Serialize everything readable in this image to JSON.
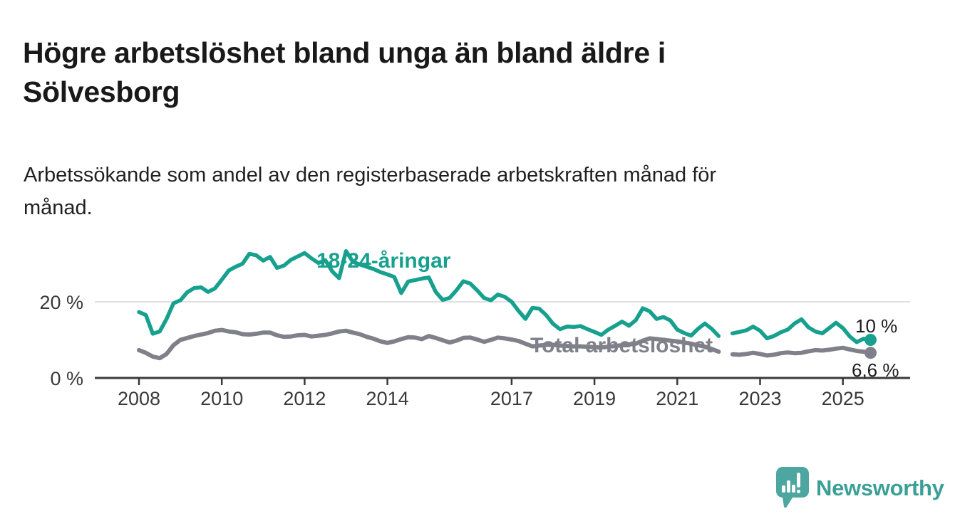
{
  "page": {
    "title_lines": [
      "Högre arbetslöshet bland unga än bland äldre i",
      "Sölvesborg"
    ],
    "subtitle_lines": [
      "Arbetssökande som andel av den registerbaserade arbetskraften månad för",
      "månad."
    ]
  },
  "branding": {
    "name": "Newsworthy",
    "logo_icon": "speech-bubble-bar-chart",
    "icon_color": "#4da69f",
    "text_color": "#3aa096"
  },
  "chart_data": {
    "type": "line",
    "title": "Högre arbetslöshet bland unga än bland äldre i Sölvesborg",
    "subtitle": "Arbetssökande som andel av den registerbaserade arbetskraften månad för månad.",
    "x_unit": "decimal_year",
    "x_start": 2008.0,
    "x_step": 0.16667,
    "x_axis": {
      "tick_years": [
        2008,
        2010,
        2012,
        2014,
        2017,
        2019,
        2021,
        2023,
        2025
      ],
      "tick_labels": [
        "2008",
        "2010",
        "2012",
        "2014",
        "2017",
        "2019",
        "2021",
        "2023",
        "2025"
      ]
    },
    "y_axis": {
      "ticks": [
        0,
        20
      ],
      "tick_labels": [
        "0 %",
        "20 %"
      ],
      "visible_max": 34,
      "grid": "only-at-20"
    },
    "legend_position": "inline-labels",
    "colors": {
      "young": "#17a08e",
      "total": "#80808a",
      "grid": "#e0e0e0",
      "axis": "#3a3a3a"
    },
    "series": [
      {
        "name": "18-24-åringar",
        "color": "#17a08e",
        "end_value_label": "10 %",
        "values": [
          17.3,
          16.5,
          11.6,
          12.2,
          15.5,
          19.6,
          20.4,
          22.5,
          23.6,
          23.8,
          22.6,
          23.5,
          25.8,
          28.2,
          29.2,
          30.0,
          32.6,
          32.2,
          30.8,
          31.8,
          28.9,
          29.5,
          31.0,
          31.9,
          32.8,
          31.4,
          30.2,
          30.9,
          28.0,
          26.2,
          33.3,
          30.5,
          29.8,
          29.2,
          28.6,
          27.8,
          27.2,
          26.5,
          22.3,
          25.3,
          25.7,
          26.1,
          26.4,
          22.6,
          20.5,
          21.0,
          23.0,
          25.4,
          24.8,
          23.0,
          21.0,
          20.4,
          21.9,
          21.3,
          20.0,
          17.6,
          15.5,
          18.4,
          18.2,
          16.5,
          14.2,
          12.8,
          13.5,
          13.4,
          13.6,
          12.8,
          12.1,
          11.3,
          12.7,
          13.7,
          14.8,
          13.7,
          15.2,
          18.3,
          17.5,
          15.5,
          16.0,
          15.1,
          12.7,
          11.8,
          11.1,
          12.9,
          14.3,
          12.9,
          11.0,
          null,
          11.7,
          12.1,
          12.5,
          13.5,
          12.4,
          10.4,
          11.0,
          12.0,
          12.7,
          14.3,
          15.4,
          13.3,
          12.2,
          11.7,
          13.1,
          14.5,
          13.1,
          10.9,
          9.4,
          10.3,
          10.0
        ]
      },
      {
        "name": "Total arbetslöshet",
        "color": "#80808a",
        "end_value_label": "6,6 %",
        "values": [
          7.3,
          6.6,
          5.6,
          5.2,
          6.3,
          8.6,
          10.0,
          10.5,
          11.0,
          11.4,
          11.8,
          12.4,
          12.6,
          12.2,
          12.0,
          11.5,
          11.4,
          11.6,
          11.9,
          11.9,
          11.2,
          10.8,
          10.9,
          11.2,
          11.3,
          10.9,
          11.1,
          11.3,
          11.7,
          12.2,
          12.4,
          11.9,
          11.5,
          10.8,
          10.3,
          9.6,
          9.2,
          9.6,
          10.2,
          10.7,
          10.6,
          10.2,
          11.0,
          10.5,
          9.9,
          9.3,
          9.8,
          10.5,
          10.6,
          10.1,
          9.5,
          10.0,
          10.6,
          10.4,
          10.1,
          9.7,
          9.0,
          8.3,
          8.5,
          8.7,
          8.7,
          8.5,
          8.4,
          8.3,
          8.3,
          8.2,
          8.1,
          8.0,
          8.2,
          8.4,
          8.6,
          8.8,
          9.0,
          9.8,
          10.4,
          10.2,
          10.0,
          9.8,
          9.6,
          9.3,
          9.0,
          8.6,
          8.2,
          7.6,
          6.9,
          null,
          6.2,
          6.1,
          6.3,
          6.6,
          6.3,
          5.9,
          6.1,
          6.5,
          6.7,
          6.5,
          6.6,
          7.0,
          7.3,
          7.2,
          7.4,
          7.7,
          7.9,
          7.5,
          7.1,
          6.9,
          6.6
        ]
      }
    ]
  }
}
